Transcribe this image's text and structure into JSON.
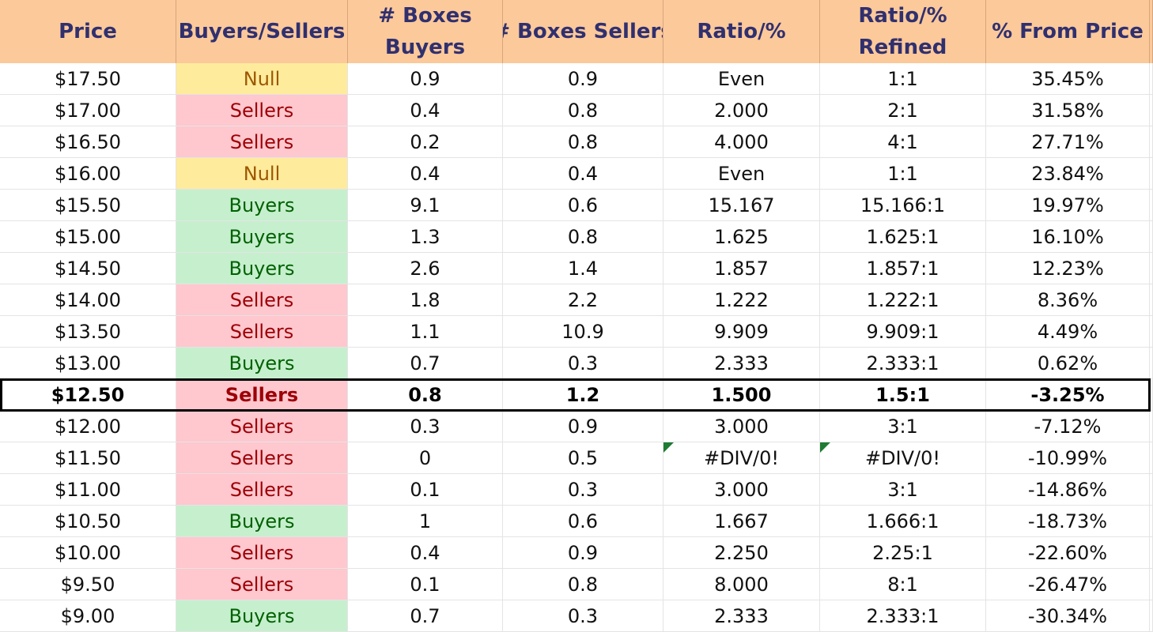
{
  "header": {
    "price": "Price",
    "buyers_sellers": "Buyers/Sellers",
    "boxes_buyers": [
      "# Boxes",
      "Buyers"
    ],
    "boxes_sellers": "# Boxes Sellers",
    "ratio": "Ratio/%",
    "ratio_refined": [
      "Ratio/%",
      "Refined"
    ],
    "from_price": "% From Price"
  },
  "colors": {
    "header_bg": "#fcc99a",
    "header_text": "#30306f",
    "sellers_bg": "#ffc7ce",
    "sellers_text": "#9c0006",
    "buyers_bg": "#c6efce",
    "buyers_text": "#006100",
    "null_bg": "#ffeb9c",
    "null_text": "#9c5700",
    "error_flag": "#1e7b34"
  },
  "current_row_index": 10,
  "rows": [
    {
      "price": "$17.50",
      "bs": "Null",
      "bb": "0.9",
      "bsl": "0.9",
      "ratio": "Even",
      "refined": "1:1",
      "pct": "35.45%"
    },
    {
      "price": "$17.00",
      "bs": "Sellers",
      "bb": "0.4",
      "bsl": "0.8",
      "ratio": "2.000",
      "refined": "2:1",
      "pct": "31.58%"
    },
    {
      "price": "$16.50",
      "bs": "Sellers",
      "bb": "0.2",
      "bsl": "0.8",
      "ratio": "4.000",
      "refined": "4:1",
      "pct": "27.71%"
    },
    {
      "price": "$16.00",
      "bs": "Null",
      "bb": "0.4",
      "bsl": "0.4",
      "ratio": "Even",
      "refined": "1:1",
      "pct": "23.84%"
    },
    {
      "price": "$15.50",
      "bs": "Buyers",
      "bb": "9.1",
      "bsl": "0.6",
      "ratio": "15.167",
      "refined": "15.166:1",
      "pct": "19.97%"
    },
    {
      "price": "$15.00",
      "bs": "Buyers",
      "bb": "1.3",
      "bsl": "0.8",
      "ratio": "1.625",
      "refined": "1.625:1",
      "pct": "16.10%"
    },
    {
      "price": "$14.50",
      "bs": "Buyers",
      "bb": "2.6",
      "bsl": "1.4",
      "ratio": "1.857",
      "refined": "1.857:1",
      "pct": "12.23%"
    },
    {
      "price": "$14.00",
      "bs": "Sellers",
      "bb": "1.8",
      "bsl": "2.2",
      "ratio": "1.222",
      "refined": "1.222:1",
      "pct": "8.36%"
    },
    {
      "price": "$13.50",
      "bs": "Sellers",
      "bb": "1.1",
      "bsl": "10.9",
      "ratio": "9.909",
      "refined": "9.909:1",
      "pct": "4.49%"
    },
    {
      "price": "$13.00",
      "bs": "Buyers",
      "bb": "0.7",
      "bsl": "0.3",
      "ratio": "2.333",
      "refined": "2.333:1",
      "pct": "0.62%"
    },
    {
      "price": "$12.50",
      "bs": "Sellers",
      "bb": "0.8",
      "bsl": "1.2",
      "ratio": "1.500",
      "refined": "1.5:1",
      "pct": "-3.25%"
    },
    {
      "price": "$12.00",
      "bs": "Sellers",
      "bb": "0.3",
      "bsl": "0.9",
      "ratio": "3.000",
      "refined": "3:1",
      "pct": "-7.12%"
    },
    {
      "price": "$11.50",
      "bs": "Sellers",
      "bb": "0",
      "bsl": "0.5",
      "ratio": "#DIV/0!",
      "refined": "#DIV/0!",
      "pct": "-10.99%",
      "error": true
    },
    {
      "price": "$11.00",
      "bs": "Sellers",
      "bb": "0.1",
      "bsl": "0.3",
      "ratio": "3.000",
      "refined": "3:1",
      "pct": "-14.86%"
    },
    {
      "price": "$10.50",
      "bs": "Buyers",
      "bb": "1",
      "bsl": "0.6",
      "ratio": "1.667",
      "refined": "1.666:1",
      "pct": "-18.73%"
    },
    {
      "price": "$10.00",
      "bs": "Sellers",
      "bb": "0.4",
      "bsl": "0.9",
      "ratio": "2.250",
      "refined": "2.25:1",
      "pct": "-22.60%"
    },
    {
      "price": "$9.50",
      "bs": "Sellers",
      "bb": "0.1",
      "bsl": "0.8",
      "ratio": "8.000",
      "refined": "8:1",
      "pct": "-26.47%"
    },
    {
      "price": "$9.00",
      "bs": "Buyers",
      "bb": "0.7",
      "bsl": "0.3",
      "ratio": "2.333",
      "refined": "2.333:1",
      "pct": "-30.34%"
    }
  ]
}
